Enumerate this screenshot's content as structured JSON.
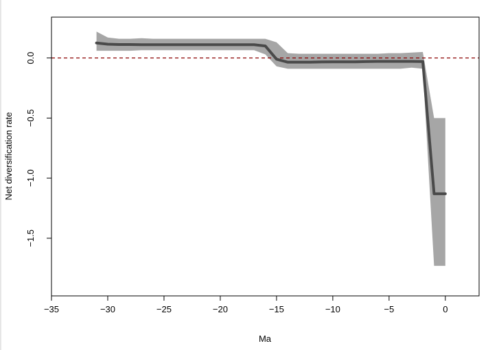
{
  "chart_data": {
    "type": "line",
    "title": "",
    "xlabel": "Ma",
    "ylabel": "Net diversification rate",
    "xlim": [
      -35,
      3
    ],
    "ylim": [
      -1.98,
      0.34
    ],
    "xticks": [
      -35,
      -30,
      -25,
      -20,
      -15,
      -10,
      -5,
      0
    ],
    "xtick_labels": [
      "−35",
      "−30",
      "−25",
      "−20",
      "−15",
      "−10",
      "−5",
      "0"
    ],
    "yticks": [
      0.0,
      -0.5,
      -1.0,
      -1.5
    ],
    "ytick_labels": [
      "0.0",
      "−0.5",
      "−1.0",
      "−1.5"
    ],
    "grid": false,
    "reference_line": {
      "y": 0,
      "style": "dashed",
      "color": "#8b0000"
    },
    "series": [
      {
        "x": [
          -31,
          -30,
          -29,
          -28,
          -27,
          -26,
          -25,
          -24,
          -23,
          -22,
          -21,
          -20,
          -19,
          -18,
          -17,
          -16,
          -15,
          -14,
          -13,
          -12,
          -11,
          -10,
          -9,
          -8,
          -7,
          -6,
          -5,
          -4,
          -3,
          -2,
          -1,
          0
        ],
        "values": [
          0.125,
          0.115,
          0.112,
          0.112,
          0.11,
          0.11,
          0.11,
          0.11,
          0.11,
          0.11,
          0.11,
          0.11,
          0.11,
          0.11,
          0.11,
          0.1,
          -0.01,
          -0.035,
          -0.035,
          -0.035,
          -0.033,
          -0.032,
          -0.032,
          -0.032,
          -0.03,
          -0.028,
          -0.028,
          -0.028,
          -0.028,
          -0.03,
          -1.13,
          -1.13
        ],
        "lower": [
          0.06,
          0.06,
          0.06,
          0.06,
          0.065,
          0.065,
          0.065,
          0.065,
          0.065,
          0.065,
          0.065,
          0.065,
          0.065,
          0.065,
          0.065,
          0.03,
          -0.07,
          -0.09,
          -0.09,
          -0.09,
          -0.09,
          -0.09,
          -0.09,
          -0.09,
          -0.09,
          -0.09,
          -0.09,
          -0.09,
          -0.08,
          -0.09,
          -1.73,
          -1.73
        ],
        "upper": [
          0.22,
          0.17,
          0.16,
          0.16,
          0.165,
          0.16,
          0.16,
          0.16,
          0.16,
          0.16,
          0.16,
          0.16,
          0.16,
          0.16,
          0.16,
          0.16,
          0.13,
          0.04,
          0.035,
          0.035,
          0.035,
          0.035,
          0.035,
          0.035,
          0.035,
          0.035,
          0.04,
          0.04,
          0.045,
          0.05,
          -0.5,
          -0.5
        ],
        "line_color": "#4a4a4a",
        "band_color": "#a6a6a6"
      }
    ]
  }
}
